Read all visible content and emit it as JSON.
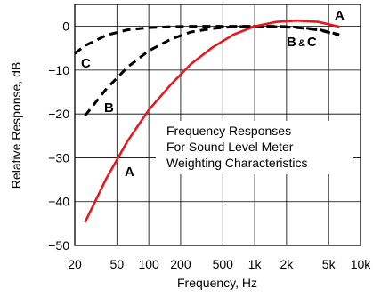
{
  "chart_data": {
    "type": "line",
    "xlabel": "Frequency, Hz",
    "ylabel": "Relative Response, dB",
    "xscale": "log",
    "xlim": [
      20,
      10000
    ],
    "ylim": [
      -50,
      5
    ],
    "grid": true,
    "x_ticks": [
      {
        "value": 20,
        "label": "20"
      },
      {
        "value": 50,
        "label": "50"
      },
      {
        "value": 100,
        "label": "100"
      },
      {
        "value": 200,
        "label": "200"
      },
      {
        "value": 500,
        "label": "500"
      },
      {
        "value": 1000,
        "label": "1k"
      },
      {
        "value": 2000,
        "label": "2k"
      },
      {
        "value": 5000,
        "label": "5k"
      },
      {
        "value": 10000,
        "label": "10k"
      }
    ],
    "y_ticks": [
      {
        "value": 0,
        "label": "0"
      },
      {
        "value": -10,
        "label": "−10"
      },
      {
        "value": -20,
        "label": "−20"
      },
      {
        "value": -30,
        "label": "−30"
      },
      {
        "value": -40,
        "label": "−40"
      },
      {
        "value": -50,
        "label": "−50"
      }
    ],
    "annotation": [
      "Frequency Responses",
      "For Sound Level Meter",
      "Weighting Characteristics"
    ],
    "series": [
      {
        "name": "A",
        "color": "#e8191e",
        "dash": false,
        "x": [
          25,
          40,
          63,
          100,
          160,
          250,
          400,
          630,
          1000,
          1600,
          2500,
          4000,
          6300
        ],
        "y": [
          -44.7,
          -34.6,
          -26.2,
          -19.1,
          -13.4,
          -8.6,
          -4.8,
          -1.9,
          0,
          1.0,
          1.3,
          1.0,
          -0.1
        ]
      },
      {
        "name": "B",
        "color": "#000000",
        "dash": true,
        "x": [
          25,
          40,
          63,
          100,
          160,
          250,
          400,
          630,
          1000,
          1600,
          2500,
          4000,
          6300
        ],
        "y": [
          -20.4,
          -14.2,
          -9.3,
          -5.6,
          -3.0,
          -1.3,
          -0.5,
          -0.1,
          0,
          0,
          -0.2,
          -0.7,
          -1.9
        ]
      },
      {
        "name": "C",
        "color": "#000000",
        "dash": true,
        "x": [
          20,
          25,
          40,
          63,
          100,
          160,
          250,
          400,
          630,
          1000,
          1600,
          2500,
          4000,
          6300
        ],
        "y": [
          -6.2,
          -4.4,
          -2.0,
          -0.8,
          -0.3,
          -0.1,
          0,
          0,
          0,
          0,
          -0.1,
          -0.3,
          -0.8,
          -2.0
        ]
      }
    ],
    "curve_labels": {
      "A_top": "A",
      "A_bottom": "A",
      "B": "B",
      "C": "C",
      "BC_B": "B",
      "BC_amp": "&",
      "BC_C": "C"
    }
  }
}
